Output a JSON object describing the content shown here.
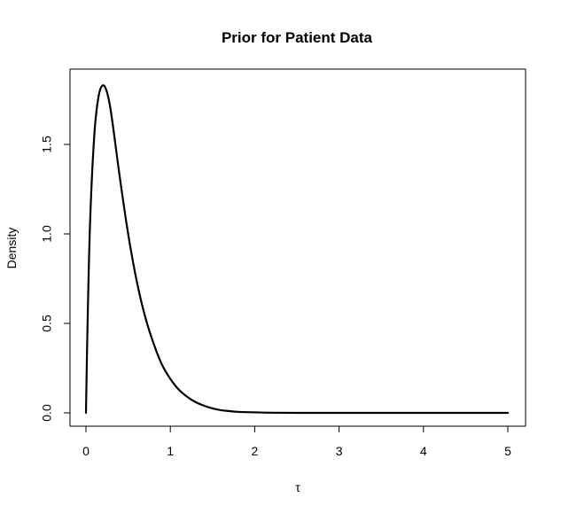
{
  "chart_data": {
    "type": "line",
    "title": "Prior for Patient Data",
    "xlabel": "τ",
    "ylabel": "Density",
    "xlim": [
      0,
      5
    ],
    "ylim": [
      0,
      1.85
    ],
    "x_ticks": [
      0,
      1,
      2,
      3,
      4,
      5
    ],
    "x_tick_labels": [
      "0",
      "1",
      "2",
      "3",
      "4",
      "5"
    ],
    "y_ticks": [
      0,
      0.5,
      1,
      1.5
    ],
    "y_tick_labels": [
      "0.0",
      "0.5",
      "1.0",
      "1.5"
    ],
    "grid": false,
    "series": [
      {
        "color": "#000000",
        "x": [
          0,
          0.02,
          0.05,
          0.1,
          0.15,
          0.2,
          0.25,
          0.3,
          0.4,
          0.5,
          0.6,
          0.7,
          0.8,
          0.9,
          1.0,
          1.1,
          1.2,
          1.3,
          1.4,
          1.5,
          1.6,
          1.7,
          1.8,
          2.0,
          2.2,
          2.5,
          3.0,
          3.5,
          4.0,
          4.5,
          5.0
        ],
        "y": [
          0,
          0.52,
          1.08,
          1.56,
          1.77,
          1.83,
          1.79,
          1.67,
          1.32,
          1.0,
          0.74,
          0.54,
          0.39,
          0.27,
          0.19,
          0.13,
          0.09,
          0.06,
          0.04,
          0.025,
          0.015,
          0.01,
          0.006,
          0.003,
          0.001,
          0.0,
          0.0,
          0.0,
          0.0,
          0.0,
          0.0
        ]
      }
    ]
  }
}
